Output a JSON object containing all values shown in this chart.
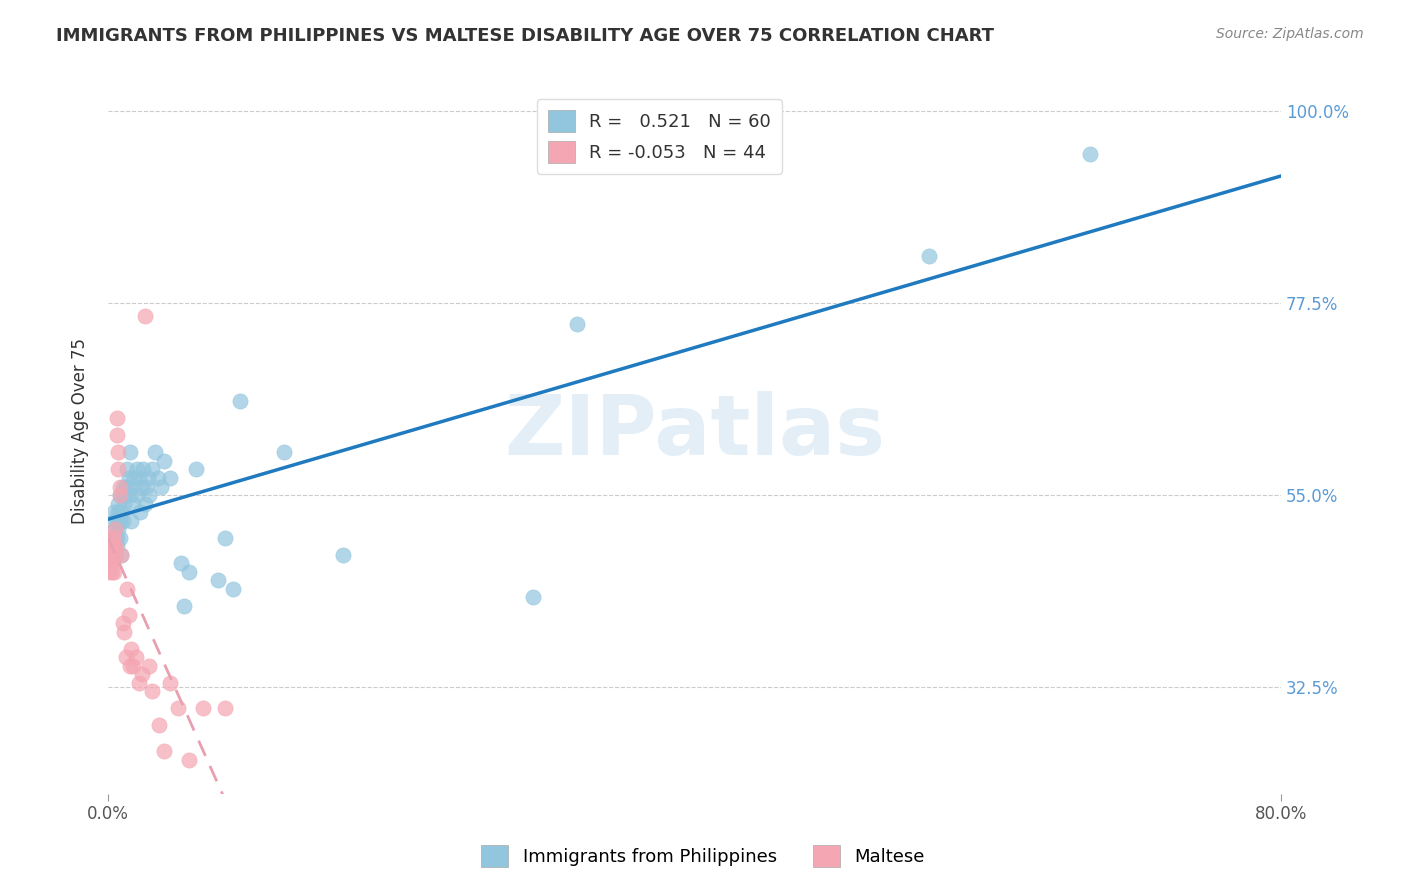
{
  "title": "IMMIGRANTS FROM PHILIPPINES VS MALTESE DISABILITY AGE OVER 75 CORRELATION CHART",
  "source": "Source: ZipAtlas.com",
  "xlabel_bottom": "",
  "ylabel": "Disability Age Over 75",
  "x_tick_labels": [
    "0.0%",
    "80.0%"
  ],
  "y_tick_labels": [
    "32.5%",
    "55.0%",
    "77.5%",
    "100.0%"
  ],
  "y_tick_values": [
    0.325,
    0.55,
    0.775,
    1.0
  ],
  "x_min": 0.0,
  "x_max": 0.8,
  "y_min": 0.2,
  "y_max": 1.05,
  "legend_label_blue": "Immigrants from Philippines",
  "legend_label_pink": "Maltese",
  "r_blue": 0.521,
  "n_blue": 60,
  "r_pink": -0.053,
  "n_pink": 44,
  "blue_color": "#92c5de",
  "pink_color": "#f4a6b2",
  "blue_line_color": "#1f7abf",
  "pink_line_color": "#e8a0b0",
  "watermark": "ZIPatlas",
  "blue_scatter_x": [
    0.003,
    0.004,
    0.004,
    0.005,
    0.005,
    0.005,
    0.006,
    0.006,
    0.006,
    0.007,
    0.007,
    0.007,
    0.008,
    0.008,
    0.008,
    0.009,
    0.009,
    0.01,
    0.01,
    0.011,
    0.011,
    0.012,
    0.013,
    0.014,
    0.015,
    0.015,
    0.016,
    0.016,
    0.017,
    0.018,
    0.02,
    0.02,
    0.021,
    0.022,
    0.023,
    0.024,
    0.025,
    0.026,
    0.027,
    0.028,
    0.03,
    0.032,
    0.034,
    0.036,
    0.038,
    0.042,
    0.05,
    0.052,
    0.055,
    0.06,
    0.075,
    0.08,
    0.085,
    0.09,
    0.12,
    0.16,
    0.29,
    0.32,
    0.56,
    0.67
  ],
  "blue_scatter_y": [
    0.5,
    0.52,
    0.53,
    0.48,
    0.5,
    0.51,
    0.49,
    0.5,
    0.52,
    0.51,
    0.53,
    0.54,
    0.5,
    0.52,
    0.55,
    0.48,
    0.53,
    0.52,
    0.56,
    0.54,
    0.55,
    0.56,
    0.58,
    0.57,
    0.55,
    0.6,
    0.52,
    0.56,
    0.54,
    0.57,
    0.55,
    0.58,
    0.57,
    0.53,
    0.56,
    0.58,
    0.54,
    0.56,
    0.57,
    0.55,
    0.58,
    0.6,
    0.57,
    0.56,
    0.59,
    0.57,
    0.47,
    0.42,
    0.46,
    0.58,
    0.45,
    0.5,
    0.44,
    0.66,
    0.6,
    0.48,
    0.43,
    0.75,
    0.83,
    0.95
  ],
  "pink_scatter_x": [
    0.001,
    0.001,
    0.002,
    0.002,
    0.002,
    0.002,
    0.003,
    0.003,
    0.003,
    0.003,
    0.004,
    0.004,
    0.004,
    0.005,
    0.005,
    0.005,
    0.006,
    0.006,
    0.007,
    0.007,
    0.008,
    0.008,
    0.009,
    0.01,
    0.011,
    0.012,
    0.013,
    0.014,
    0.015,
    0.016,
    0.017,
    0.019,
    0.021,
    0.023,
    0.025,
    0.028,
    0.03,
    0.035,
    0.038,
    0.042,
    0.048,
    0.055,
    0.065,
    0.08
  ],
  "pink_scatter_y": [
    0.47,
    0.46,
    0.5,
    0.47,
    0.48,
    0.47,
    0.49,
    0.46,
    0.47,
    0.48,
    0.5,
    0.49,
    0.46,
    0.48,
    0.49,
    0.51,
    0.64,
    0.62,
    0.6,
    0.58,
    0.55,
    0.56,
    0.48,
    0.4,
    0.39,
    0.36,
    0.44,
    0.41,
    0.35,
    0.37,
    0.35,
    0.36,
    0.33,
    0.34,
    0.76,
    0.35,
    0.32,
    0.28,
    0.25,
    0.33,
    0.3,
    0.24,
    0.3,
    0.3
  ]
}
